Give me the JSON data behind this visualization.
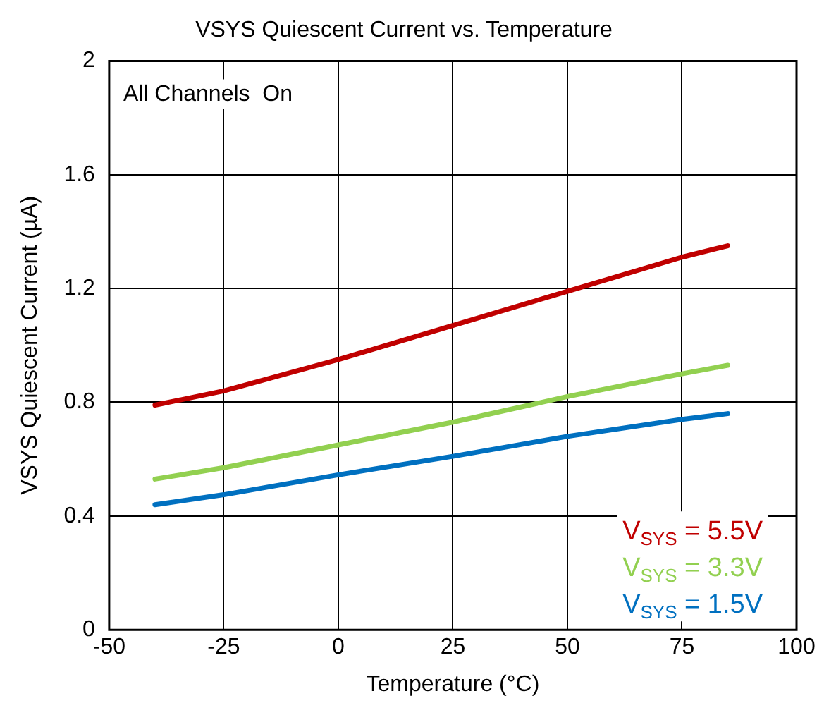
{
  "chart_data": {
    "type": "line",
    "title": "VSYS Quiescent Current vs. Temperature",
    "xlabel": "Temperature (°C)",
    "ylabel": "VSYS Quiescent Current (µA)",
    "x": [
      -40,
      -25,
      0,
      25,
      50,
      75,
      85
    ],
    "series": [
      {
        "name": "V$_{SYS}$ = 5.5V",
        "color": "#c00000",
        "values": [
          0.79,
          0.84,
          0.95,
          1.07,
          1.19,
          1.31,
          1.35
        ]
      },
      {
        "name": "V$_{SYS}$ = 3.3V",
        "color": "#92d050",
        "values": [
          0.53,
          0.57,
          0.65,
          0.73,
          0.82,
          0.9,
          0.93
        ]
      },
      {
        "name": "V$_{SYS}$ = 1.5V",
        "color": "#0070c0",
        "values": [
          0.44,
          0.475,
          0.545,
          0.61,
          0.68,
          0.74,
          0.76
        ]
      }
    ],
    "xlim": [
      -50,
      100
    ],
    "xticks": [
      -50,
      -25,
      0,
      25,
      50,
      75,
      100
    ],
    "ylim": [
      0,
      2
    ],
    "yticks": [
      0,
      0.4,
      0.8,
      1.2,
      1.6,
      2
    ],
    "grid": true,
    "legend": "bottom right",
    "marker": "none",
    "line_style": "solid",
    "annotations": [
      "All Channels  On"
    ]
  }
}
